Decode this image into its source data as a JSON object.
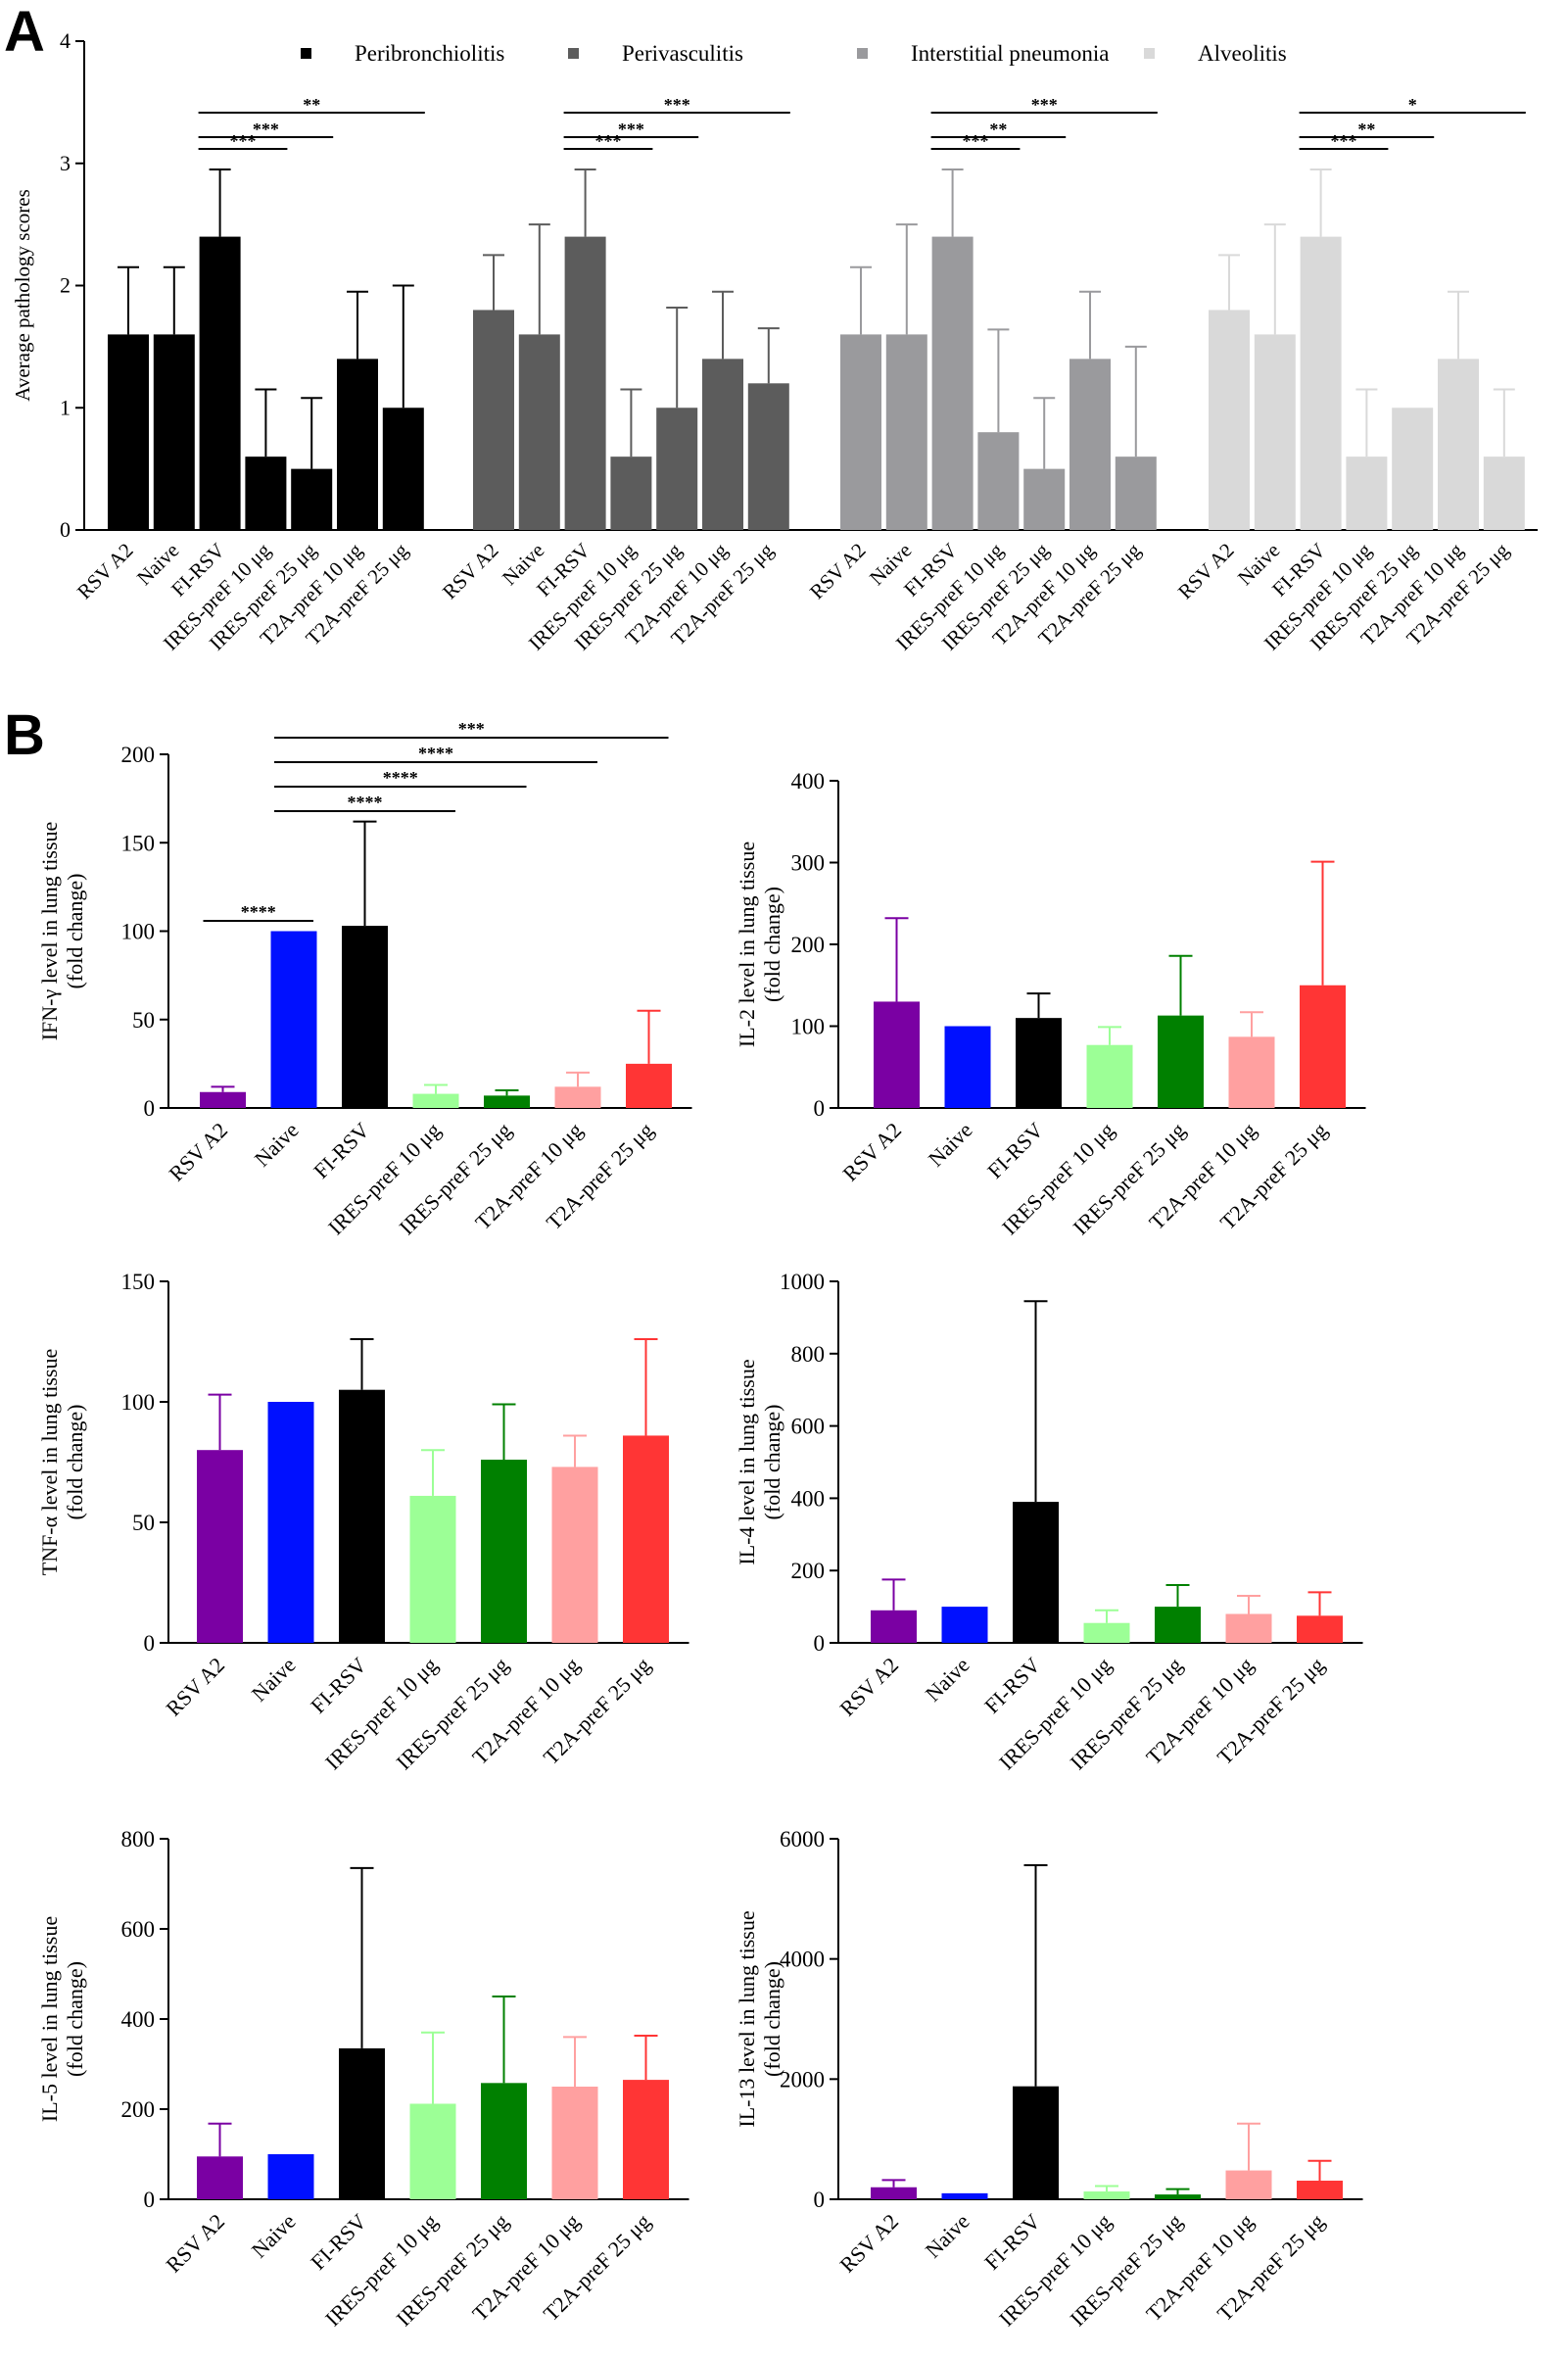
{
  "figure": {
    "panel_labels": [
      "A",
      "B"
    ]
  },
  "chart_data": [
    {
      "id": "A",
      "type": "bar",
      "title": "",
      "ylabel": "Average pathology scores",
      "ylim": [
        0,
        4
      ],
      "yticks": [
        0,
        1,
        2,
        3,
        4
      ],
      "legend": {
        "placement": "top",
        "entries": [
          "Peribronchiolitis",
          "Perivasculitis",
          "Interstitial pneumonia",
          "Alveolitis"
        ]
      },
      "groups": [
        {
          "name": "Peribronchiolitis",
          "color": "#000000",
          "categories": [
            "RSV A2",
            "Naive",
            "FI-RSV",
            "IRES-preF 10 μg",
            "IRES-preF 25 μg",
            "T2A-preF 10 μg",
            "T2A-preF 25 μg"
          ],
          "values": [
            1.6,
            1.6,
            2.4,
            0.6,
            0.5,
            1.4,
            1.0
          ],
          "errors": [
            0.55,
            0.55,
            0.55,
            0.55,
            0.58,
            0.55,
            1.0
          ],
          "significance": [
            {
              "from": 2,
              "to": 3,
              "label": "***"
            },
            {
              "from": 2,
              "to": 4,
              "label": "***"
            },
            {
              "from": 2,
              "to": 6,
              "label": "**"
            }
          ]
        },
        {
          "name": "Perivasculitis",
          "color": "#5c5c5c",
          "categories": [
            "RSV A2",
            "Naive",
            "FI-RSV",
            "IRES-preF 10 μg",
            "IRES-preF 25 μg",
            "T2A-preF 10 μg",
            "T2A-preF 25 μg"
          ],
          "values": [
            1.8,
            1.6,
            2.4,
            0.6,
            1.0,
            1.4,
            1.2
          ],
          "errors": [
            0.45,
            0.9,
            0.55,
            0.55,
            0.82,
            0.55,
            0.45
          ],
          "significance": [
            {
              "from": 2,
              "to": 3,
              "label": "***"
            },
            {
              "from": 2,
              "to": 4,
              "label": "***"
            },
            {
              "from": 2,
              "to": 6,
              "label": "***"
            }
          ]
        },
        {
          "name": "Interstitial pneumonia",
          "color": "#9a9a9d",
          "categories": [
            "RSV A2",
            "Naive",
            "FI-RSV",
            "IRES-preF 10 μg",
            "IRES-preF 25 μg",
            "T2A-preF 10 μg",
            "T2A-preF 25 μg"
          ],
          "values": [
            1.6,
            1.6,
            2.4,
            0.8,
            0.5,
            1.4,
            0.6
          ],
          "errors": [
            0.55,
            0.9,
            0.55,
            0.84,
            0.58,
            0.55,
            0.9
          ],
          "significance": [
            {
              "from": 2,
              "to": 3,
              "label": "***"
            },
            {
              "from": 2,
              "to": 4,
              "label": "**"
            },
            {
              "from": 2,
              "to": 6,
              "label": "***"
            }
          ]
        },
        {
          "name": "Alveolitis",
          "color": "#d9d9d9",
          "categories": [
            "RSV A2",
            "Naive",
            "FI-RSV",
            "IRES-preF 10 μg",
            "IRES-preF 25 μg",
            "T2A-preF 10 μg",
            "T2A-preF 25 μg"
          ],
          "values": [
            1.8,
            1.6,
            2.4,
            0.6,
            1.0,
            1.4,
            0.6
          ],
          "errors": [
            0.45,
            0.9,
            0.55,
            0.55,
            0.0,
            0.55,
            0.55
          ],
          "significance": [
            {
              "from": 2,
              "to": 3,
              "label": "***"
            },
            {
              "from": 2,
              "to": 4,
              "label": "**"
            },
            {
              "from": 2,
              "to": 6,
              "label": "*"
            }
          ]
        }
      ]
    },
    {
      "id": "B1",
      "type": "bar",
      "ylabel": [
        "IFN-γ level in lung tissue",
        "(fold change)"
      ],
      "ylim": [
        0,
        200
      ],
      "yticks": [
        0,
        50,
        100,
        150,
        200
      ],
      "categories": [
        "RSV A2",
        "Naive",
        "FI-RSV",
        "IRES-preF 10 μg",
        "IRES-preF 25 μg",
        "T2A-preF 10 μg",
        "T2A-preF 25 μg"
      ],
      "colors": [
        "#7a00a3",
        "#0010ff",
        "#000000",
        "#9cff96",
        "#008000",
        "#ffa0a0",
        "#ff3535"
      ],
      "values": [
        9,
        100,
        103,
        8,
        7,
        12,
        25
      ],
      "errors": [
        3,
        0,
        59,
        5,
        3,
        8,
        30
      ],
      "significance": [
        {
          "from": 0,
          "to": 1,
          "label": "****"
        },
        {
          "from": 1,
          "to": 3,
          "label": "****"
        },
        {
          "from": 1,
          "to": 4,
          "label": "****"
        },
        {
          "from": 1,
          "to": 5,
          "label": "****"
        },
        {
          "from": 1,
          "to": 6,
          "label": "***"
        }
      ]
    },
    {
      "id": "B2",
      "type": "bar",
      "ylabel": [
        "IL-2 level in lung tissue",
        "(fold change)"
      ],
      "ylim": [
        0,
        400
      ],
      "yticks": [
        0,
        100,
        200,
        300,
        400
      ],
      "categories": [
        "RSV A2",
        "Naive",
        "FI-RSV",
        "IRES-preF 10 μg",
        "IRES-preF 25 μg",
        "T2A-preF 10 μg",
        "T2A-preF 25 μg"
      ],
      "colors": [
        "#7a00a3",
        "#0010ff",
        "#000000",
        "#9cff96",
        "#008000",
        "#ffa0a0",
        "#ff3535"
      ],
      "values": [
        130,
        100,
        110,
        77,
        113,
        87,
        150
      ],
      "errors": [
        102,
        0,
        30,
        22,
        73,
        30,
        151
      ],
      "significance": []
    },
    {
      "id": "B3",
      "type": "bar",
      "ylabel": [
        "TNF-α level in lung tissue",
        "(fold change)"
      ],
      "ylim": [
        0,
        150
      ],
      "yticks": [
        0,
        50,
        100,
        150
      ],
      "categories": [
        "RSV A2",
        "Naive",
        "FI-RSV",
        "IRES-preF 10 μg",
        "IRES-preF 25 μg",
        "T2A-preF 10 μg",
        "T2A-preF 25 μg"
      ],
      "colors": [
        "#7a00a3",
        "#0010ff",
        "#000000",
        "#9cff96",
        "#008000",
        "#ffa0a0",
        "#ff3535"
      ],
      "values": [
        80,
        100,
        105,
        61,
        76,
        73,
        86
      ],
      "errors": [
        23,
        0,
        21,
        19,
        23,
        13,
        40
      ],
      "significance": []
    },
    {
      "id": "B4",
      "type": "bar",
      "ylabel": [
        "IL-4 level in lung tissue",
        "(fold change)"
      ],
      "ylim": [
        0,
        1000
      ],
      "yticks": [
        0,
        200,
        400,
        600,
        800,
        1000
      ],
      "categories": [
        "RSV A2",
        "Naive",
        "FI-RSV",
        "IRES-preF 10 μg",
        "IRES-preF 25 μg",
        "T2A-preF 10 μg",
        "T2A-preF 25 μg"
      ],
      "colors": [
        "#7a00a3",
        "#0010ff",
        "#000000",
        "#9cff96",
        "#008000",
        "#ffa0a0",
        "#ff3535"
      ],
      "values": [
        90,
        100,
        390,
        55,
        100,
        80,
        75
      ],
      "errors": [
        85,
        0,
        555,
        35,
        60,
        50,
        65
      ],
      "significance": []
    },
    {
      "id": "B5",
      "type": "bar",
      "ylabel": [
        "IL-5 level in lung tissue",
        "(fold change)"
      ],
      "ylim": [
        0,
        800
      ],
      "yticks": [
        0,
        200,
        400,
        600,
        800
      ],
      "categories": [
        "RSV A2",
        "Naive",
        "FI-RSV",
        "IRES-preF 10 μg",
        "IRES-preF 25 μg",
        "T2A-preF 10 μg",
        "T2A-preF 25 μg"
      ],
      "colors": [
        "#7a00a3",
        "#0010ff",
        "#000000",
        "#9cff96",
        "#008000",
        "#ffa0a0",
        "#ff3535"
      ],
      "values": [
        95,
        100,
        335,
        212,
        258,
        250,
        265
      ],
      "errors": [
        73,
        0,
        400,
        158,
        192,
        110,
        98
      ],
      "significance": []
    },
    {
      "id": "B6",
      "type": "bar",
      "ylabel": [
        "IL-13 level in lung tissue",
        "(fold change)"
      ],
      "ylim": [
        0,
        6000
      ],
      "yticks": [
        0,
        2000,
        4000,
        6000
      ],
      "categories": [
        "RSV A2",
        "Naive",
        "FI-RSV",
        "IRES-preF 10 μg",
        "IRES-preF 25 μg",
        "T2A-preF 10 μg",
        "T2A-preF 25 μg"
      ],
      "colors": [
        "#7a00a3",
        "#0010ff",
        "#000000",
        "#9cff96",
        "#008000",
        "#ffa0a0",
        "#ff3535"
      ],
      "values": [
        200,
        100,
        1880,
        130,
        80,
        480,
        310
      ],
      "errors": [
        120,
        0,
        3680,
        90,
        90,
        780,
        330
      ],
      "significance": []
    }
  ]
}
